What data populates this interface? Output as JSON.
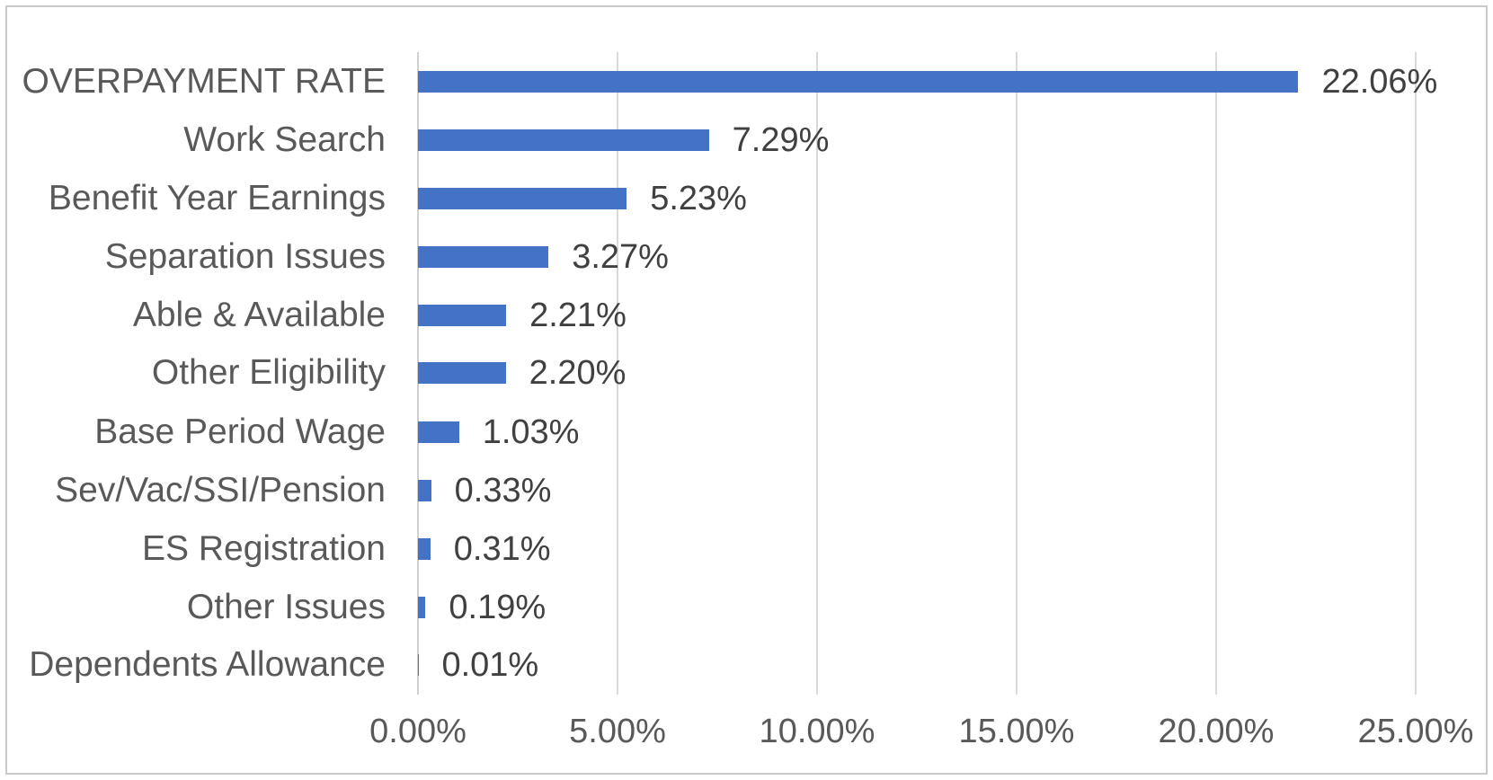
{
  "chart_data": {
    "type": "bar",
    "orientation": "horizontal",
    "title": "",
    "xlabel": "",
    "ylabel": "",
    "categories": [
      "OVERPAYMENT RATE",
      "Work Search",
      "Benefit Year Earnings",
      "Separation Issues",
      "Able & Available",
      "Other Eligibility",
      "Base Period Wage",
      "Sev/Vac/SSI/Pension",
      "ES Registration",
      "Other Issues",
      "Dependents Allowance"
    ],
    "values": [
      22.06,
      7.29,
      5.23,
      3.27,
      2.21,
      2.2,
      1.03,
      0.33,
      0.31,
      0.19,
      0.01
    ],
    "data_labels": [
      "22.06%",
      "7.29%",
      "5.23%",
      "3.27%",
      "2.21%",
      "2.20%",
      "1.03%",
      "0.33%",
      "0.31%",
      "0.19%",
      "0.01%"
    ],
    "x_ticks": [
      "0.00%",
      "5.00%",
      "10.00%",
      "15.00%",
      "20.00%",
      "25.00%"
    ],
    "x_tick_values": [
      0,
      5,
      10,
      15,
      20,
      25
    ],
    "xlim": [
      0,
      25
    ],
    "grid": true,
    "legend": false,
    "colors": {
      "bar": "#4472C4",
      "gridline": "#d9d9d9",
      "axis_line": "#cfcfcf",
      "category_label": "#595959",
      "tick_label": "#595959",
      "data_label": "#404040",
      "frame_border": "#c9c9c9",
      "background": "#ffffff"
    }
  }
}
